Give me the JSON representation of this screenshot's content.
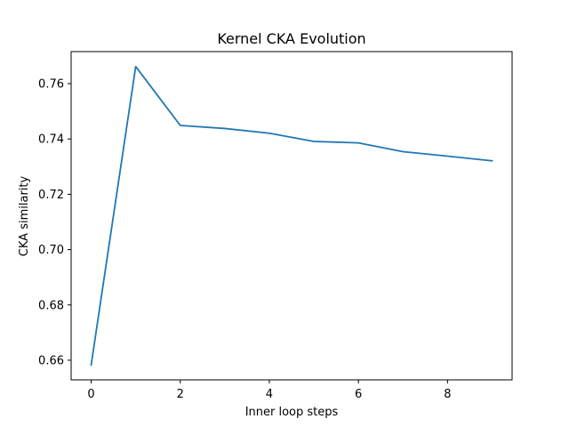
{
  "chart_data": {
    "type": "line",
    "title": "Kernel CKA Evolution",
    "xlabel": "Inner loop steps",
    "ylabel": "CKA similarity",
    "x": [
      0,
      1,
      2,
      3,
      4,
      5,
      6,
      7,
      8,
      9
    ],
    "series": [
      {
        "values": [
          0.6583,
          0.7662,
          0.7449,
          0.7438,
          0.7421,
          0.7391,
          0.7386,
          0.7354,
          0.7338,
          0.7321
        ],
        "color": "#1f77b4"
      }
    ],
    "xlim": [
      -0.45,
      9.45
    ],
    "ylim": [
      0.6529,
      0.7716
    ],
    "xticks": [
      0,
      2,
      4,
      6,
      8
    ],
    "xtick_labels": [
      "0",
      "2",
      "4",
      "6",
      "8"
    ],
    "yticks": [
      0.66,
      0.68,
      0.7,
      0.72,
      0.74,
      0.76
    ],
    "ytick_labels": [
      "0.66",
      "0.68",
      "0.70",
      "0.72",
      "0.74",
      "0.76"
    ],
    "grid": false,
    "legend": "none"
  }
}
